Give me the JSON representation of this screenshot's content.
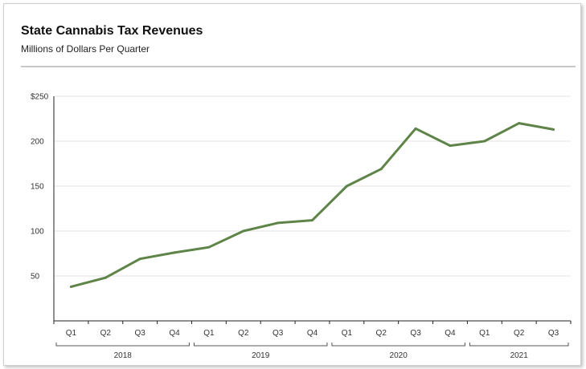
{
  "header": {
    "title": "State Cannabis Tax Revenues",
    "subtitle": "Millions of Dollars Per Quarter"
  },
  "colors": {
    "line": "#5e8448",
    "grid": "#e3e3e3",
    "axis": "#222222",
    "text": "#333333"
  },
  "chart_data": {
    "type": "line",
    "title": "State Cannabis Tax Revenues",
    "subtitle": "Millions of Dollars Per Quarter",
    "xlabel": "",
    "ylabel": "",
    "ylim": [
      0,
      250
    ],
    "y_ticks": [
      50,
      100,
      150,
      200,
      250
    ],
    "y_tick_labels": [
      "50",
      "100",
      "150",
      "200",
      "$250"
    ],
    "grid": "horizontal",
    "categories": [
      "Q1",
      "Q2",
      "Q3",
      "Q4",
      "Q1",
      "Q2",
      "Q3",
      "Q4",
      "Q1",
      "Q2",
      "Q3",
      "Q4",
      "Q1",
      "Q2",
      "Q3"
    ],
    "groups": [
      {
        "label": "2018",
        "count": 4
      },
      {
        "label": "2019",
        "count": 4
      },
      {
        "label": "2020",
        "count": 4
      },
      {
        "label": "2021",
        "count": 3
      }
    ],
    "series": [
      {
        "values": [
          38,
          48,
          69,
          76,
          82,
          100,
          109,
          112,
          150,
          169,
          214,
          195,
          200,
          220,
          213
        ]
      }
    ]
  }
}
